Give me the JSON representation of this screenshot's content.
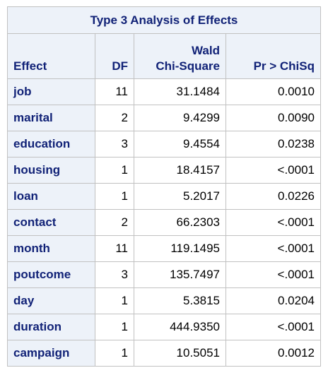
{
  "table": {
    "title": "Type 3 Analysis of Effects",
    "headers": {
      "effect": "Effect",
      "df": "DF",
      "chi_line1": "Wald",
      "chi_line2": "Chi-Square",
      "p": "Pr > ChiSq"
    },
    "rows": [
      {
        "effect": "job",
        "df": "11",
        "chi": "31.1484",
        "p": "0.0010"
      },
      {
        "effect": "marital",
        "df": "2",
        "chi": "9.4299",
        "p": "0.0090"
      },
      {
        "effect": "education",
        "df": "3",
        "chi": "9.4554",
        "p": "0.0238"
      },
      {
        "effect": "housing",
        "df": "1",
        "chi": "18.4157",
        "p": "<.0001"
      },
      {
        "effect": "loan",
        "df": "1",
        "chi": "5.2017",
        "p": "0.0226"
      },
      {
        "effect": "contact",
        "df": "2",
        "chi": "66.2303",
        "p": "<.0001"
      },
      {
        "effect": "month",
        "df": "11",
        "chi": "119.1495",
        "p": "<.0001"
      },
      {
        "effect": "poutcome",
        "df": "3",
        "chi": "135.7497",
        "p": "<.0001"
      },
      {
        "effect": "day",
        "df": "1",
        "chi": "5.3815",
        "p": "0.0204"
      },
      {
        "effect": "duration",
        "df": "1",
        "chi": "444.9350",
        "p": "<.0001"
      },
      {
        "effect": "campaign",
        "df": "1",
        "chi": "10.5051",
        "p": "0.0012"
      }
    ]
  }
}
